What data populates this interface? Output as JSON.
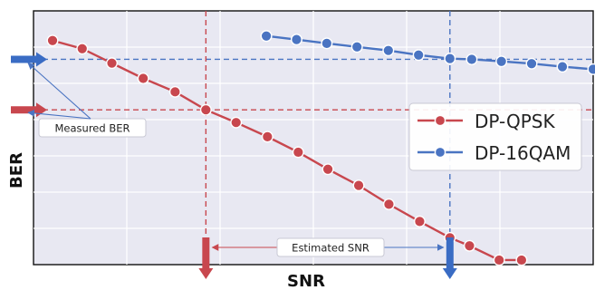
{
  "chart_data": {
    "type": "line",
    "title": "",
    "xlabel": "SNR",
    "ylabel": "BER",
    "xlim": [
      0,
      100
    ],
    "ylim": [
      0,
      100
    ],
    "grid": true,
    "legend_position": "right",
    "series": [
      {
        "name": "DP-QPSK",
        "color": "#c8474e",
        "x": [
          3.4,
          8.7,
          14.0,
          19.6,
          25.3,
          30.8,
          36.2,
          41.8,
          47.3,
          52.6,
          58.1,
          63.5,
          69.0,
          74.4,
          77.9,
          83.2,
          87.2
        ],
        "y": [
          88.3,
          85.1,
          79.4,
          73.4,
          68.1,
          61.0,
          56.0,
          50.4,
          44.3,
          37.6,
          31.2,
          23.8,
          17.0,
          10.6,
          7.4,
          1.8,
          1.8
        ]
      },
      {
        "name": "DP-16QAM",
        "color": "#4a74c2",
        "x": [
          41.6,
          47.0,
          52.4,
          57.8,
          63.4,
          68.8,
          74.4,
          78.3,
          83.6,
          89.0,
          94.5,
          100.0
        ],
        "y": [
          90.1,
          88.7,
          87.2,
          85.8,
          84.4,
          82.6,
          81.2,
          80.9,
          80.1,
          79.2,
          78.0,
          77.0
        ]
      }
    ],
    "measured_ber": {
      "DP-QPSK": 61.0,
      "DP-16QAM": 80.9
    },
    "estimated_snr": {
      "DP-QPSK": 30.8,
      "DP-16QAM": 74.4
    },
    "annotations": {
      "measured_ber": "Measured BER",
      "estimated_snr": "Estimated SNR"
    },
    "legend": [
      "DP-QPSK",
      "DP-16QAM"
    ]
  }
}
